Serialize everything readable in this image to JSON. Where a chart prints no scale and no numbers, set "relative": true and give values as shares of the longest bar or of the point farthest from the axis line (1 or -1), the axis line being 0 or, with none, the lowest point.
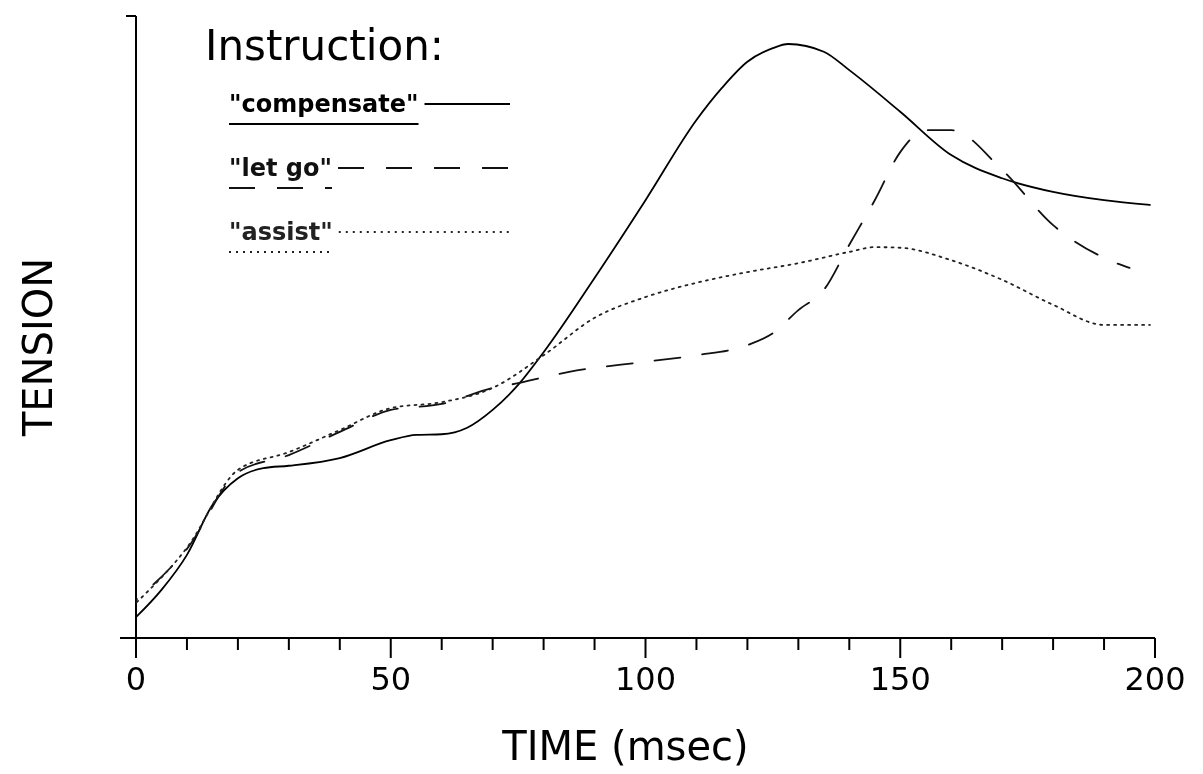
{
  "chart_data": {
    "type": "line",
    "relative": true,
    "xlabel": "TIME (msec)",
    "ylabel": "TENSION",
    "legend_title": "Instruction:",
    "legend": "top left",
    "xlim": [
      0,
      200
    ],
    "xticks": [
      0,
      {
        "value": 10,
        "label": null
      },
      {
        "value": 20,
        "label": null
      },
      {
        "value": 30,
        "label": null
      },
      {
        "value": 40,
        "label": null
      },
      50,
      {
        "value": 60,
        "label": null
      },
      {
        "value": 70,
        "label": null
      },
      {
        "value": 80,
        "label": null
      },
      {
        "value": 90,
        "label": null
      },
      100,
      {
        "value": 110,
        "label": null
      },
      {
        "value": 120,
        "label": null
      },
      {
        "value": 130,
        "label": null
      },
      {
        "value": 140,
        "label": null
      },
      150,
      {
        "value": 160,
        "label": null
      },
      {
        "value": 170,
        "label": null
      },
      {
        "value": 180,
        "label": null
      },
      {
        "value": 190,
        "label": null
      },
      200
    ],
    "series": [
      {
        "name": "\"compensate\"",
        "color": "#000000",
        "line_style": "solid",
        "x": [
          0,
          5,
          10,
          15,
          20,
          25,
          30,
          40,
          50,
          55,
          60,
          65,
          70,
          75,
          80,
          90,
          100,
          110,
          115,
          120,
          125,
          128,
          135,
          140,
          150,
          160,
          170,
          180,
          190,
          199
        ],
        "values": [
          0.035,
          0.081,
          0.14,
          0.224,
          0.269,
          0.286,
          0.29,
          0.303,
          0.333,
          0.342,
          0.343,
          0.354,
          0.384,
          0.426,
          0.481,
          0.606,
          0.737,
          0.872,
          0.926,
          0.97,
          0.993,
          1,
          0.987,
          0.956,
          0.886,
          0.813,
          0.774,
          0.751,
          0.737,
          0.729
        ]
      },
      {
        "name": "\"let go\"",
        "color": "#111111",
        "line_style": "dashed",
        "x": [
          0,
          10,
          20,
          30,
          40,
          50,
          60,
          70,
          75,
          80,
          85,
          100,
          110,
          120,
          125,
          130,
          135,
          140,
          145,
          150,
          155,
          160,
          170,
          180,
          190,
          195
        ],
        "values": [
          0.064,
          0.15,
          0.279,
          0.308,
          0.347,
          0.384,
          0.394,
          0.421,
          0.429,
          0.439,
          0.448,
          0.465,
          0.476,
          0.493,
          0.513,
          0.552,
          0.586,
          0.662,
          0.737,
          0.818,
          0.855,
          0.855,
          0.788,
          0.695,
          0.64,
          0.623
        ]
      },
      {
        "name": "\"assist\"",
        "color": "#222222",
        "line_style": "dotted",
        "x": [
          0,
          10,
          20,
          30,
          40,
          50,
          60,
          70,
          80,
          90,
          100,
          110,
          120,
          130,
          140,
          145,
          150,
          160,
          170,
          180,
          190,
          199
        ],
        "values": [
          0.059,
          0.152,
          0.283,
          0.313,
          0.35,
          0.387,
          0.397,
          0.421,
          0.476,
          0.539,
          0.574,
          0.598,
          0.616,
          0.631,
          0.65,
          0.658,
          0.657,
          0.636,
          0.603,
          0.561,
          0.527,
          0.527
        ]
      }
    ]
  }
}
